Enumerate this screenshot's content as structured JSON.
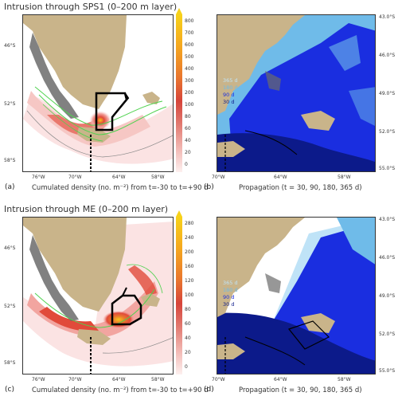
{
  "panel_a": {
    "title": "Intrusion through SPS1 (0–200 m layer)",
    "label": "(a)",
    "xlabel": "Cumulated density (no. m⁻²) from t=-30 to t=+90 d",
    "lat_ticks": [
      "46°S",
      "52°S",
      "58°S"
    ],
    "lon_ticks": [
      "76°W",
      "70°W",
      "64°W",
      "58°W"
    ],
    "cbar_ticks": [
      "800",
      "700",
      "600",
      "500",
      "400",
      "300",
      "200",
      "100",
      "80",
      "60",
      "40",
      "20",
      "0"
    ],
    "contour_label": "200"
  },
  "panel_b": {
    "label": "(b)",
    "xlabel": "Propagation (t = 30, 90, 180, 365 d)",
    "lat_ticks": [
      "43.0°S",
      "46.0°S",
      "49.0°S",
      "52.0°S",
      "55.0°S"
    ],
    "lon_ticks": [
      "70°W",
      "64°W",
      "58°W"
    ],
    "legend": [
      "365 d",
      "180 d",
      "90 d",
      "30 d"
    ]
  },
  "panel_c": {
    "title": "Intrusion through ME (0–200 m layer)",
    "label": "(c)",
    "xlabel": "Cumulated density (no. m⁻²) from t=-30 to t=+90 d",
    "lat_ticks": [
      "46°S",
      "52°S",
      "58°S"
    ],
    "lon_ticks": [
      "76°W",
      "70°W",
      "64°W",
      "58°W"
    ],
    "cbar_ticks": [
      "280",
      "240",
      "200",
      "160",
      "120",
      "100",
      "80",
      "60",
      "40",
      "20",
      "0"
    ],
    "contour_label": "200"
  },
  "panel_d": {
    "label": "(d)",
    "xlabel": "Propagation (t = 30, 90, 180, 365 d)",
    "lat_ticks": [
      "43.0°S",
      "46.0°S",
      "49.0°S",
      "52.0°S",
      "55.0°S"
    ],
    "lon_ticks": [
      "70°W",
      "64°W",
      "58°W"
    ],
    "legend": [
      "365 d",
      "180 d",
      "90 d",
      "30 d"
    ]
  },
  "colors": {
    "land": "#c9b48a",
    "d365": "#bfe3f7",
    "d180": "#6fbbe9",
    "d90": "#1a2ee0",
    "d30": "#0c1a8a",
    "heat_low": "#fbe3e3",
    "heat_mid": "#e14a3a",
    "heat_high": "#f7c61a",
    "green": "#4fd24f"
  }
}
